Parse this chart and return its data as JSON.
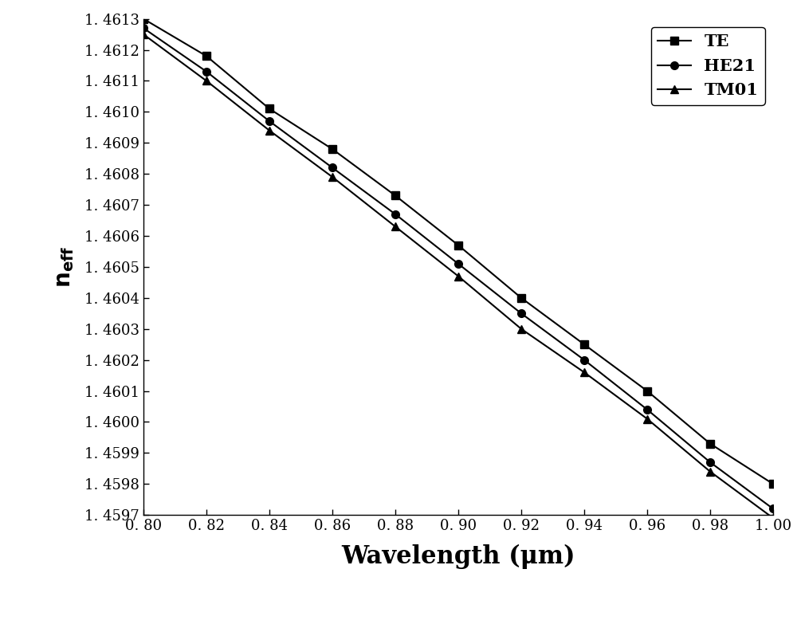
{
  "x": [
    0.8,
    0.82,
    0.84,
    0.86,
    0.88,
    0.9,
    0.92,
    0.94,
    0.96,
    0.98,
    1.0
  ],
  "TE": [
    1.4613,
    1.46118,
    1.46101,
    1.46088,
    1.46073,
    1.46057,
    1.4604,
    1.46025,
    1.4601,
    1.45993,
    1.4598
  ],
  "HE21": [
    1.46127,
    1.46113,
    1.46097,
    1.46082,
    1.46067,
    1.46051,
    1.46035,
    1.4602,
    1.46004,
    1.45987,
    1.45972
  ],
  "TM01": [
    1.46125,
    1.4611,
    1.46094,
    1.46079,
    1.46063,
    1.46047,
    1.4603,
    1.46016,
    1.46001,
    1.45984,
    1.45969
  ],
  "ylim": [
    1.4597,
    1.4613
  ],
  "xlim": [
    0.8,
    1.0
  ],
  "xlabel": "Wavelength (μm)",
  "yticks": [
    1.4597,
    1.4598,
    1.4599,
    1.46,
    1.4601,
    1.4602,
    1.4603,
    1.4604,
    1.4605,
    1.4606,
    1.4607,
    1.4608,
    1.4609,
    1.461,
    1.4611,
    1.4612,
    1.4613
  ],
  "xticks": [
    0.8,
    0.82,
    0.84,
    0.86,
    0.88,
    0.9,
    0.92,
    0.94,
    0.96,
    0.98,
    1.0
  ],
  "line_color": "#000000",
  "marker_size": 7,
  "line_width": 1.5,
  "legend_fontsize": 15,
  "tick_fontsize": 13,
  "xlabel_fontsize": 22,
  "ylabel_fontsize": 20
}
